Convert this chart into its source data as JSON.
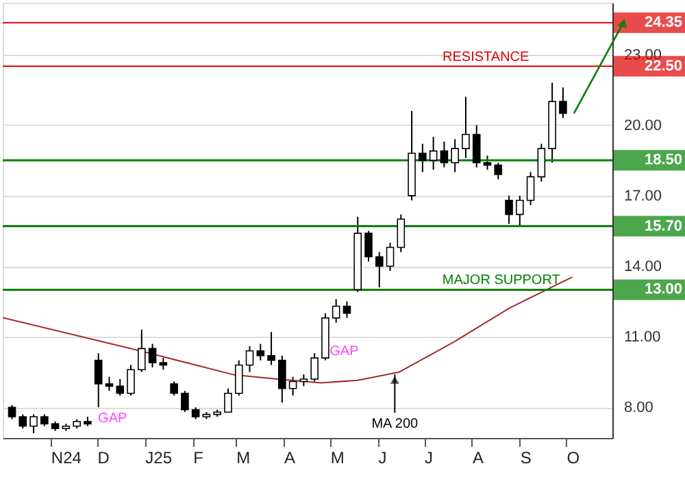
{
  "chart_data": {
    "type": "candlestick",
    "x": [
      "2024-10-07",
      "2024-10-14",
      "2024-10-21",
      "2024-10-28",
      "2024-11-04",
      "2024-11-11",
      "2024-11-18",
      "2024-11-25",
      "2024-12-02",
      "2024-12-09",
      "2024-12-16",
      "2024-12-23",
      "2024-12-30",
      "2025-01-06",
      "2025-01-13",
      "2025-01-20",
      "2025-01-27",
      "2025-02-03",
      "2025-02-10",
      "2025-02-17",
      "2025-02-24",
      "2025-03-03",
      "2025-03-10",
      "2025-03-17",
      "2025-03-24",
      "2025-03-31",
      "2025-04-07",
      "2025-04-14",
      "2025-04-21",
      "2025-04-28",
      "2025-05-05",
      "2025-05-12",
      "2025-05-19",
      "2025-05-26",
      "2025-06-02",
      "2025-06-09",
      "2025-06-16",
      "2025-06-23",
      "2025-06-30",
      "2025-07-07",
      "2025-07-14",
      "2025-07-21",
      "2025-07-28",
      "2025-08-04",
      "2025-08-11",
      "2025-08-18",
      "2025-08-25",
      "2025-09-01",
      "2025-09-08",
      "2025-09-15",
      "2025-09-22",
      "2025-09-29"
    ],
    "ohlc": [
      [
        8.0,
        8.1,
        7.5,
        7.6
      ],
      [
        7.6,
        7.7,
        7.1,
        7.2
      ],
      [
        7.2,
        7.7,
        6.9,
        7.6
      ],
      [
        7.6,
        7.7,
        7.2,
        7.3
      ],
      [
        7.3,
        7.4,
        7.0,
        7.1
      ],
      [
        7.1,
        7.3,
        7.0,
        7.2
      ],
      [
        7.2,
        7.5,
        7.1,
        7.4
      ],
      [
        7.4,
        7.6,
        7.2,
        7.3
      ],
      [
        10.0,
        10.3,
        8.0,
        9.0
      ],
      [
        9.0,
        9.3,
        8.7,
        8.9
      ],
      [
        8.9,
        9.2,
        8.5,
        8.6
      ],
      [
        8.6,
        9.8,
        8.5,
        9.6
      ],
      [
        9.6,
        11.3,
        9.5,
        10.5
      ],
      [
        10.5,
        10.7,
        9.7,
        9.9
      ],
      [
        9.9,
        10.1,
        9.6,
        9.8
      ],
      [
        9.0,
        9.1,
        8.5,
        8.6
      ],
      [
        8.6,
        8.7,
        7.8,
        7.9
      ],
      [
        7.9,
        8.0,
        7.5,
        7.6
      ],
      [
        7.6,
        7.8,
        7.5,
        7.7
      ],
      [
        7.7,
        7.9,
        7.6,
        7.8
      ],
      [
        7.8,
        8.8,
        7.8,
        8.6
      ],
      [
        8.6,
        10.0,
        8.5,
        9.8
      ],
      [
        9.8,
        10.6,
        9.5,
        10.4
      ],
      [
        10.4,
        10.7,
        10.0,
        10.2
      ],
      [
        10.2,
        11.2,
        9.8,
        10.0
      ],
      [
        10.0,
        10.2,
        8.2,
        8.8
      ],
      [
        8.8,
        9.3,
        8.5,
        9.1
      ],
      [
        9.1,
        9.4,
        8.9,
        9.2
      ],
      [
        9.2,
        10.3,
        9.1,
        10.1
      ],
      [
        10.1,
        12.0,
        10.0,
        11.8
      ],
      [
        11.8,
        12.6,
        11.6,
        12.3
      ],
      [
        12.3,
        12.5,
        11.8,
        12.0
      ],
      [
        13.0,
        16.1,
        12.9,
        15.4
      ],
      [
        15.4,
        15.5,
        14.2,
        14.4
      ],
      [
        14.4,
        14.6,
        13.1,
        14.0
      ],
      [
        14.0,
        15.0,
        13.8,
        14.8
      ],
      [
        14.8,
        16.2,
        14.6,
        16.0
      ],
      [
        17.0,
        20.6,
        16.8,
        18.8
      ],
      [
        18.8,
        19.2,
        18.0,
        18.5
      ],
      [
        18.5,
        19.5,
        18.1,
        18.9
      ],
      [
        18.9,
        19.3,
        18.2,
        18.4
      ],
      [
        18.4,
        19.4,
        18.0,
        19.0
      ],
      [
        19.0,
        21.2,
        18.6,
        19.6
      ],
      [
        19.6,
        20.0,
        18.2,
        18.4
      ],
      [
        18.4,
        18.7,
        18.1,
        18.3
      ],
      [
        18.3,
        18.4,
        17.7,
        17.9
      ],
      [
        16.8,
        17.0,
        15.8,
        16.2
      ],
      [
        16.2,
        17.0,
        15.7,
        16.8
      ],
      [
        16.8,
        18.0,
        16.6,
        17.8
      ],
      [
        17.8,
        19.2,
        17.6,
        19.0
      ],
      [
        19.0,
        21.8,
        18.4,
        21.0
      ],
      [
        21.0,
        21.6,
        20.3,
        20.5
      ]
    ],
    "series": [
      {
        "type": "line",
        "color": "#a52a2a",
        "x": [
          "2024-10-01",
          "2024-12-28",
          "2025-02-28",
          "2025-03-27",
          "2025-04-25",
          "2025-05-19",
          "2025-06-15",
          "2025-07-20",
          "2025-08-25",
          "2025-10-05"
        ],
        "values": [
          11.81,
          10.42,
          9.38,
          9.21,
          9.04,
          9.15,
          9.5,
          10.77,
          12.21,
          13.54
        ]
      }
    ],
    "xlim": [
      "2024-10-01",
      "2025-10-31"
    ],
    "xticks": [
      {
        "value": "2024-11-01",
        "label": "N24"
      },
      {
        "value": "2024-12-01",
        "label": "D"
      },
      {
        "value": "2025-01-01",
        "label": "J25"
      },
      {
        "value": "2025-02-01",
        "label": "F"
      },
      {
        "value": "2025-03-01",
        "label": "M"
      },
      {
        "value": "2025-04-01",
        "label": "A"
      },
      {
        "value": "2025-05-01",
        "label": "M"
      },
      {
        "value": "2025-06-01",
        "label": "J"
      },
      {
        "value": "2025-07-01",
        "label": "J"
      },
      {
        "value": "2025-08-01",
        "label": "A"
      },
      {
        "value": "2025-09-01",
        "label": "S"
      },
      {
        "value": "2025-10-01",
        "label": "O"
      }
    ],
    "ylim": [
      6.7,
      25.2
    ],
    "yticks": [
      {
        "value": 8,
        "label": "8.00"
      },
      {
        "value": 11,
        "label": "11.00"
      },
      {
        "value": 14,
        "label": "14.00"
      },
      {
        "value": 17,
        "label": "17.00"
      },
      {
        "value": 20,
        "label": "20.00"
      },
      {
        "value": 23,
        "label": "23.00"
      }
    ],
    "grid": "y",
    "ref_lines": [
      {
        "axis": "y",
        "value": 24.35,
        "label": "24.35",
        "color": "#e00000"
      },
      {
        "axis": "y",
        "value": 22.5,
        "label": "22.50",
        "color": "#e00000"
      },
      {
        "axis": "y",
        "value": 18.5,
        "label": "18.50",
        "color": "#008000"
      },
      {
        "axis": "y",
        "value": 15.7,
        "label": "15.70",
        "color": "#008000"
      },
      {
        "axis": "y",
        "value": 13.0,
        "label": "13.00",
        "color": "#008000"
      }
    ],
    "annotations": [
      "GAP",
      "GAP",
      {
        "text": "MA 200",
        "x": "2025-06-12",
        "y": 9.4
      },
      {
        "text": "RESISTANCE",
        "x": "2025-08-10",
        "y": 22.5
      },
      {
        "text": "MAJOR SUPPORT",
        "x": "2025-08-20",
        "y": 13.0
      }
    ]
  }
}
